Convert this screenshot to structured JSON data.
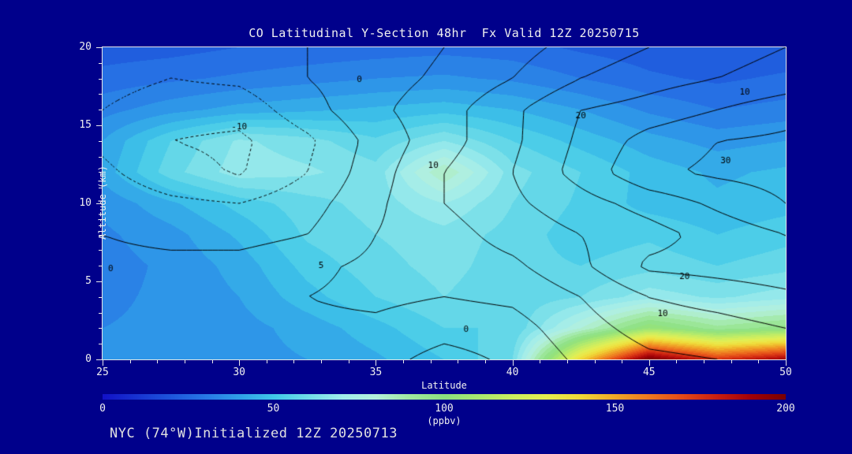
{
  "colors": {
    "background": "#00008b",
    "frame": "#e8e8e8",
    "text": "#f0f0f0",
    "contour_line": "#000000",
    "annotation_text": "#e0e0e0"
  },
  "annotation": "NYC (74°W)Initialized 12Z 20250713",
  "chart_data": {
    "type": "heatmap",
    "title": "CO Latitudinal Y-Section 48hr  Fx Valid 12Z 20250715",
    "xlabel": "Latitude",
    "ylabel": "Altitude (km)",
    "x_range": [
      25,
      50
    ],
    "y_range": [
      0,
      20
    ],
    "x_major_ticks": [
      25,
      30,
      35,
      40,
      45,
      50
    ],
    "x_minor_step": 1,
    "y_major_ticks": [
      0,
      5,
      10,
      15,
      20
    ],
    "y_minor_step": 1,
    "lats": [
      25,
      27.5,
      30,
      32.5,
      35,
      37.5,
      40,
      42.5,
      45,
      47.5,
      50
    ],
    "alts": [
      0,
      2,
      4,
      6,
      8,
      10,
      12,
      14,
      16,
      18,
      20
    ],
    "co_ppbv": [
      [
        36,
        37,
        38,
        40,
        44,
        50,
        60,
        140,
        200,
        175,
        190
      ],
      [
        35,
        36,
        38,
        42,
        48,
        55,
        55,
        80,
        105,
        92,
        98
      ],
      [
        34,
        36,
        40,
        48,
        55,
        60,
        56,
        60,
        68,
        64,
        68
      ],
      [
        33,
        36,
        42,
        52,
        58,
        62,
        57,
        55,
        58,
        55,
        58
      ],
      [
        34,
        38,
        46,
        56,
        60,
        63,
        58,
        52,
        54,
        50,
        53
      ],
      [
        36,
        44,
        52,
        58,
        62,
        70,
        60,
        54,
        48,
        46,
        48
      ],
      [
        42,
        58,
        68,
        66,
        62,
        85,
        62,
        55,
        48,
        44,
        46
      ],
      [
        40,
        55,
        66,
        62,
        56,
        65,
        55,
        48,
        42,
        38,
        40
      ],
      [
        33,
        38,
        42,
        44,
        46,
        48,
        45,
        40,
        34,
        30,
        32
      ],
      [
        27,
        29,
        31,
        33,
        35,
        36,
        34,
        30,
        26,
        24,
        26
      ],
      [
        22,
        23,
        25,
        26,
        27,
        28,
        27,
        24,
        22,
        20,
        21
      ]
    ],
    "overlay_contours": {
      "levels": [
        -10,
        -5,
        0,
        5,
        10,
        15,
        20,
        25,
        30
      ],
      "negative_style": "dotted",
      "values": [
        [
          0,
          1,
          2,
          3,
          2,
          -2,
          1,
          6,
          9,
          10,
          11
        ],
        [
          1,
          2,
          3,
          4,
          4,
          2,
          3,
          8,
          12,
          13,
          15
        ],
        [
          1,
          2,
          3,
          5,
          6,
          5,
          6,
          10,
          15,
          17,
          19
        ],
        [
          1,
          1,
          2,
          4,
          6,
          7,
          9,
          14,
          21,
          22,
          23
        ],
        [
          0,
          -1,
          -2,
          0,
          5,
          8,
          12,
          15,
          18,
          22,
          25
        ],
        [
          -2,
          -4,
          -5,
          -2,
          4,
          10,
          14,
          18,
          22,
          26,
          30
        ],
        [
          -4,
          -8,
          -10.5,
          -5,
          3,
          10,
          15,
          22,
          29,
          31,
          32
        ],
        [
          -6,
          -10,
          -11,
          -6,
          2,
          8,
          14,
          21,
          27,
          30,
          31
        ],
        [
          -5,
          -8,
          -8,
          -2,
          4,
          8,
          14,
          20,
          22,
          25,
          28
        ],
        [
          -3,
          -5,
          -4,
          0,
          3,
          6,
          10,
          15,
          18,
          20,
          22
        ],
        [
          -2,
          -3,
          -2,
          0,
          2,
          5,
          8,
          12,
          15,
          18,
          20
        ]
      ],
      "labels": [
        {
          "text": "0",
          "lat": 34.4,
          "alt": 17.9
        },
        {
          "text": "10",
          "lat": 48.5,
          "alt": 17.1
        },
        {
          "text": "20",
          "lat": 42.5,
          "alt": 15.6
        },
        {
          "text": "30",
          "lat": 47.8,
          "alt": 12.7
        },
        {
          "text": "-10",
          "lat": 30.0,
          "alt": 14.9
        },
        {
          "text": "10",
          "lat": 37.1,
          "alt": 12.4
        },
        {
          "text": "20",
          "lat": 46.3,
          "alt": 5.3
        },
        {
          "text": "10",
          "lat": 45.5,
          "alt": 2.9
        },
        {
          "text": "5",
          "lat": 33.0,
          "alt": 6.0
        },
        {
          "text": "0",
          "lat": 25.3,
          "alt": 5.8
        },
        {
          "text": "0",
          "lat": 38.3,
          "alt": 1.9
        }
      ]
    },
    "colormap": [
      {
        "v": 0,
        "c": "#1212c8"
      },
      {
        "v": 20,
        "c": "#1e56dc"
      },
      {
        "v": 30,
        "c": "#2878e6"
      },
      {
        "v": 40,
        "c": "#30a0e8"
      },
      {
        "v": 50,
        "c": "#40c8e8"
      },
      {
        "v": 60,
        "c": "#70dce8"
      },
      {
        "v": 70,
        "c": "#a0ecec"
      },
      {
        "v": 80,
        "c": "#b4f0dc"
      },
      {
        "v": 90,
        "c": "#a0e8a0"
      },
      {
        "v": 100,
        "c": "#8ce080"
      },
      {
        "v": 110,
        "c": "#aae870"
      },
      {
        "v": 120,
        "c": "#ccee60"
      },
      {
        "v": 130,
        "c": "#e8ee50"
      },
      {
        "v": 140,
        "c": "#f0d838"
      },
      {
        "v": 150,
        "c": "#f0a828"
      },
      {
        "v": 160,
        "c": "#ee7820"
      },
      {
        "v": 170,
        "c": "#e44818"
      },
      {
        "v": 180,
        "c": "#c81e10"
      },
      {
        "v": 190,
        "c": "#a00008"
      },
      {
        "v": 200,
        "c": "#780000"
      }
    ],
    "colorbar": {
      "range": [
        0,
        200
      ],
      "ticks": [
        0,
        50,
        100,
        150,
        200
      ],
      "units": "(ppbv)"
    }
  }
}
